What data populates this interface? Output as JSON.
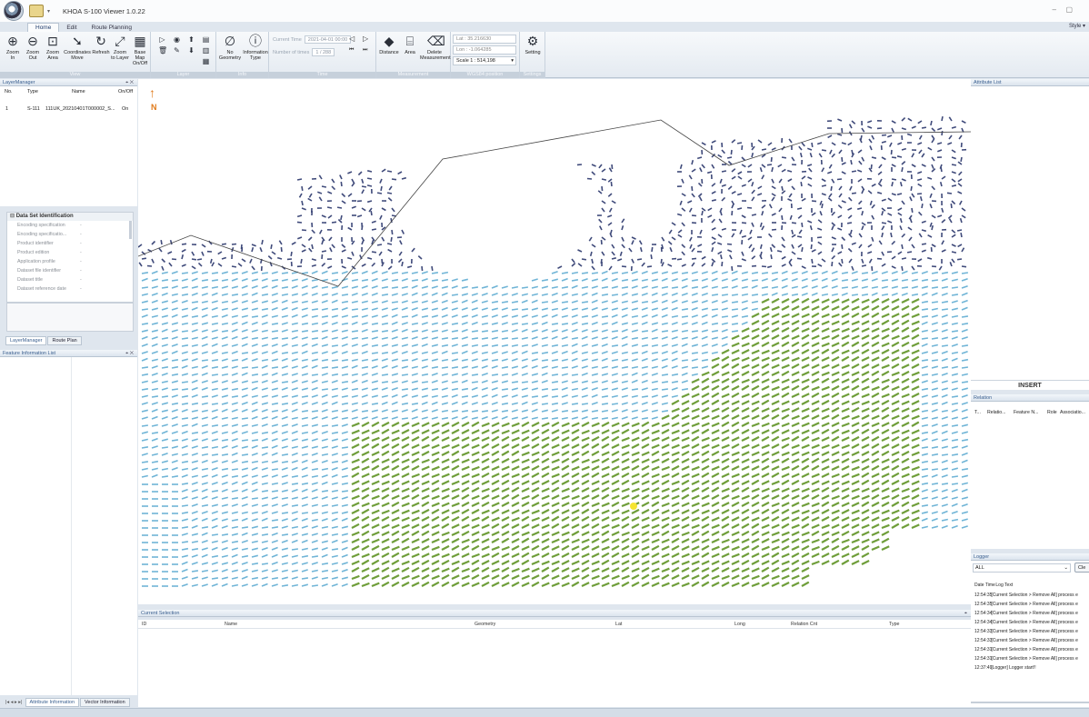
{
  "window": {
    "title": "KHOA S-100 Viewer 1.0.22",
    "minimize": "–",
    "restore": "▢",
    "style_label": "Style ▾"
  },
  "ribbon": {
    "tabs": [
      "Home",
      "Edit",
      "Route Planning"
    ],
    "groups": {
      "view": "View",
      "layer": "Layer",
      "info": "Info",
      "time": "Time",
      "measurement": "Measurement",
      "wgs84": "WGS84 position",
      "settings": "Settings"
    },
    "buttons": {
      "zoom_in": [
        "Zoom",
        "In"
      ],
      "zoom_out": [
        "Zoom",
        "Out"
      ],
      "zoom_area": [
        "Zoom",
        "Area"
      ],
      "coordinates_move": [
        "Coordinates",
        "Move"
      ],
      "refresh": [
        "Refresh",
        ""
      ],
      "zoom_to_layer": [
        "Zoom",
        "to Layer"
      ],
      "base_map": [
        "Base Map",
        "On/Off"
      ],
      "no_geometry": [
        "No",
        "Geometry"
      ],
      "information_type": [
        "Information",
        "Type"
      ],
      "distance": [
        "Distance",
        ""
      ],
      "area": [
        "Area",
        ""
      ],
      "delete_measurement": [
        "Delete",
        "Measurement"
      ],
      "setting": [
        "Setting",
        ""
      ]
    },
    "time": {
      "current_time_label": "Current Time",
      "current_time_value": "2021-04-01 00:00",
      "number_of_times_label": "Number of times",
      "number_of_times_value": "1 / 288"
    },
    "position": {
      "lat": "Lat : 35.216630",
      "lon": "Lon : -1.064285",
      "scale": "Scale 1 : 514,198"
    }
  },
  "layer_manager": {
    "title": "LayerManager",
    "columns": [
      "No.",
      "Type",
      "Name",
      "On/Off"
    ],
    "rows": [
      {
        "no": "1",
        "type": "S-111",
        "name": "111UK_20210401T000002_S...",
        "onoff": "On"
      }
    ]
  },
  "dataset_identification": {
    "title": "Data Set Identification",
    "rows": [
      {
        "key": "Encoding specification",
        "value": "-"
      },
      {
        "key": "Encoding specificatio...",
        "value": "-"
      },
      {
        "key": "Product identifier",
        "value": "-"
      },
      {
        "key": "Product edition",
        "value": "-"
      },
      {
        "key": "Application profile",
        "value": "-"
      },
      {
        "key": "Dataset file identifier",
        "value": "-"
      },
      {
        "key": "Dataset title",
        "value": "-"
      },
      {
        "key": "Dataset reference date",
        "value": "-"
      }
    ]
  },
  "left_tabs": [
    "LayerManager",
    "Route Plan"
  ],
  "feature_info": {
    "title": "Feature Information List",
    "tabs": [
      "Attribute Information",
      "Vector Information"
    ]
  },
  "map": {
    "north_label": "N"
  },
  "current_selection": {
    "title": "Current Selection",
    "columns": [
      "ID",
      "Name",
      "Geometry",
      "Lat",
      "Long",
      "Relation Cnt",
      "Type"
    ]
  },
  "attribute_list": {
    "title": "Attribute List",
    "insert_label": "INSERT"
  },
  "relation": {
    "title": "Relation",
    "columns": [
      "T...",
      "Relatio...",
      "Feature N...",
      "Role",
      "Associatio..."
    ]
  },
  "logger": {
    "title": "Logger",
    "filter": "ALL",
    "clear_label": "Cle",
    "columns": [
      "Date Time",
      "Log Text"
    ],
    "rows": [
      {
        "time": "12:54:35",
        "text": "[Current Selection > Remove All] process e"
      },
      {
        "time": "12:54:35",
        "text": "[Current Selection > Remove All] process e"
      },
      {
        "time": "12:54:34",
        "text": "[Current Selection > Remove All] process e"
      },
      {
        "time": "12:54:34",
        "text": "[Current Selection > Remove All] process e"
      },
      {
        "time": "12:54:33",
        "text": "[Current Selection > Remove All] process e"
      },
      {
        "time": "12:54:33",
        "text": "[Current Selection > Remove All] process e"
      },
      {
        "time": "12:54:31",
        "text": "[Current Selection > Remove All] process e"
      },
      {
        "time": "12:54:31",
        "text": "[Current Selection > Remove All] process e"
      },
      {
        "time": "12:37:49",
        "text": "[Logger] Logger start!!"
      }
    ]
  },
  "icons": {
    "zoom_in": "⊕",
    "zoom_out": "⊖",
    "zoom_area": "⊡",
    "coordinates_move": "➘",
    "refresh": "↻",
    "zoom_to_layer": "⤢",
    "base_map": "▦",
    "no_geometry": "∅",
    "information_type": "ⓘ",
    "distance": "◆",
    "area": "⌸",
    "delete_measurement": "⌫",
    "setting": "⚙",
    "pin": "⌖ ✕",
    "nav_prev": "◁",
    "nav_next": "▷",
    "nav_first": "⏮",
    "nav_last": "⏭",
    "tab_nav": "|◂ ◂ ▸ ▸|",
    "north_arrow": "↑"
  }
}
